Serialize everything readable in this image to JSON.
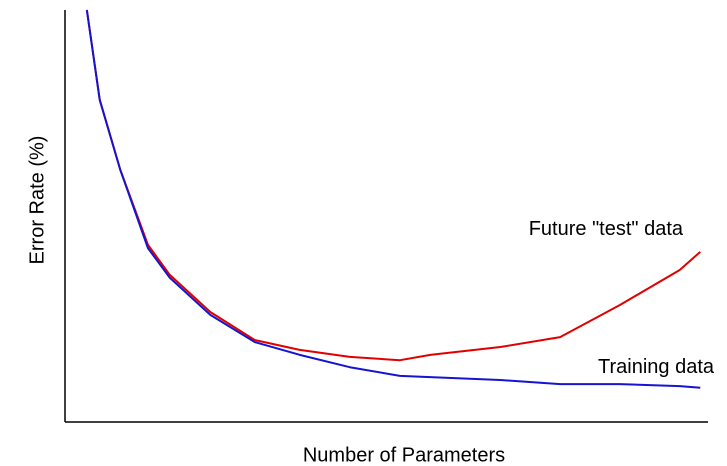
{
  "chart_data": {
    "type": "line",
    "xlabel": "Number of Parameters",
    "ylabel": "Error Rate (%)",
    "x": [
      3.4,
      5.4,
      8.6,
      12.9,
      16.3,
      22.6,
      29.5,
      36.5,
      44.3,
      52.1,
      56.8,
      67.7,
      77.0,
      86.3,
      95.6,
      98.8
    ],
    "series": [
      {
        "name": "Future \"test\" data",
        "color": "#e00000",
        "values": [
          100,
          78.2,
          61.2,
          43.0,
          35.7,
          26.7,
          19.9,
          17.5,
          15.8,
          15.0,
          16.3,
          18.2,
          20.6,
          28.4,
          36.9,
          41.3
        ]
      },
      {
        "name": "Training data",
        "color": "#1414d2",
        "values": [
          100,
          78.2,
          61.2,
          42.2,
          35.0,
          26.0,
          19.4,
          16.3,
          13.3,
          11.2,
          10.9,
          10.2,
          9.2,
          9.2,
          8.7,
          8.3
        ]
      }
    ],
    "xlim": [
      0,
      100
    ],
    "ylim": [
      0,
      100
    ]
  }
}
